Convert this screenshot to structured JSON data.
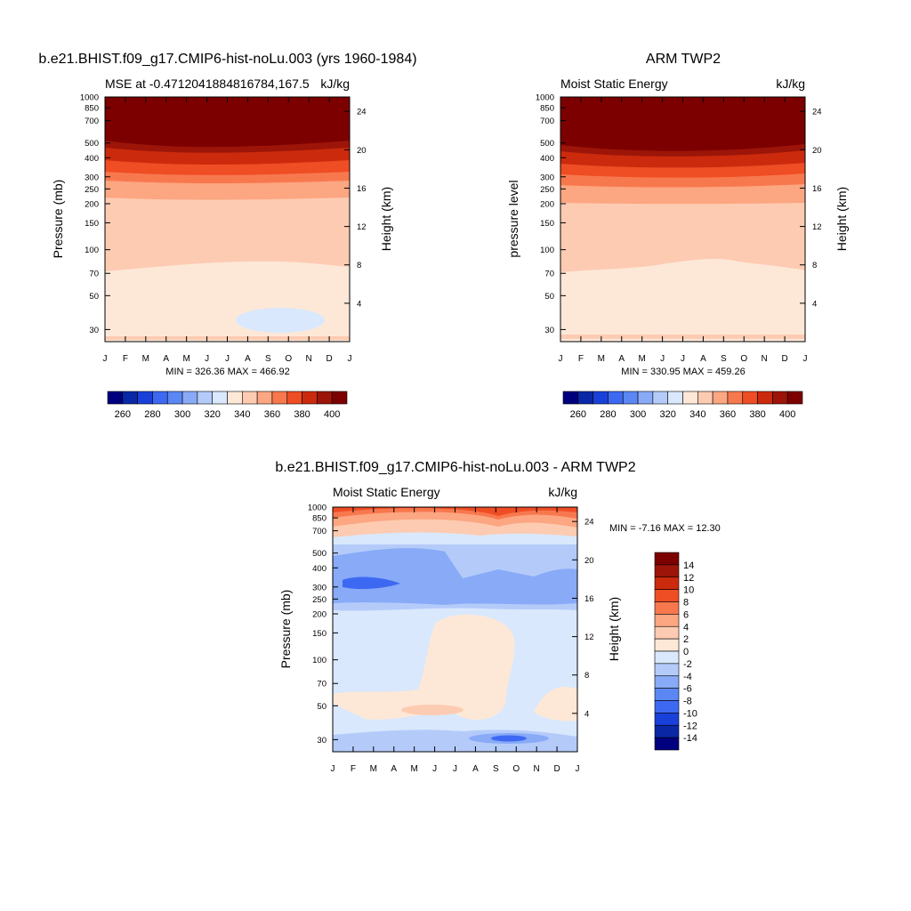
{
  "chart_data": [
    {
      "type": "heatmap",
      "title": "b.e21.BHIST.f09_g17.CMIP6-hist-noLu.003 (yrs 1960-1984)",
      "left_label": "MSE at -0.4712041884816784,167.5",
      "right_label": "kJ/kg",
      "ylabel": "Pressure (mb)",
      "y2label": "Height (km)",
      "x_ticks": [
        "J",
        "F",
        "M",
        "A",
        "M",
        "J",
        "J",
        "A",
        "S",
        "O",
        "N",
        "D",
        "J"
      ],
      "y_ticks": [
        "30",
        "50",
        "70",
        "100",
        "150",
        "200",
        "250",
        "300",
        "400",
        "500",
        "700",
        "850",
        "1000"
      ],
      "y_values": [
        30,
        50,
        70,
        100,
        150,
        200,
        250,
        300,
        400,
        500,
        700,
        850,
        1000
      ],
      "y2_ticks": [
        "24",
        "20",
        "16",
        "12",
        "8",
        "4"
      ],
      "y2_values": [
        24,
        20,
        16,
        12,
        8,
        4
      ],
      "min_max_text": "MIN = 326.36 MAX = 466.92",
      "min": 326.36,
      "max": 466.92,
      "contour_levels": [
        260,
        270,
        280,
        290,
        300,
        310,
        320,
        330,
        340,
        350,
        360,
        370,
        380,
        390,
        400
      ],
      "colorbar_labels": [
        "260",
        "280",
        "300",
        "320",
        "340",
        "360",
        "380",
        "400"
      ],
      "colorbar_values": [
        260,
        280,
        300,
        320,
        340,
        360,
        380,
        400
      ]
    },
    {
      "type": "heatmap",
      "title": "ARM TWP2",
      "left_label": "Moist Static Energy",
      "right_label": "kJ/kg",
      "ylabel": "pressure level",
      "y2label": "Height (km)",
      "x_ticks": [
        "J",
        "F",
        "M",
        "A",
        "M",
        "J",
        "J",
        "A",
        "S",
        "O",
        "N",
        "D",
        "J"
      ],
      "y_ticks": [
        "30",
        "50",
        "70",
        "100",
        "150",
        "200",
        "250",
        "300",
        "400",
        "500",
        "700",
        "850",
        "1000"
      ],
      "y_values": [
        30,
        50,
        70,
        100,
        150,
        200,
        250,
        300,
        400,
        500,
        700,
        850,
        1000
      ],
      "y2_ticks": [
        "24",
        "20",
        "16",
        "12",
        "8",
        "4"
      ],
      "y2_values": [
        24,
        20,
        16,
        12,
        8,
        4
      ],
      "min_max_text": "MIN = 330.95 MAX = 459.26",
      "min": 330.95,
      "max": 459.26,
      "contour_levels": [
        260,
        270,
        280,
        290,
        300,
        310,
        320,
        330,
        340,
        350,
        360,
        370,
        380,
        390,
        400
      ],
      "colorbar_labels": [
        "260",
        "280",
        "300",
        "320",
        "340",
        "360",
        "380",
        "400"
      ],
      "colorbar_values": [
        260,
        280,
        300,
        320,
        340,
        360,
        380,
        400
      ]
    },
    {
      "type": "heatmap",
      "title": "b.e21.BHIST.f09_g17.CMIP6-hist-noLu.003 - ARM TWP2",
      "left_label": "Moist Static Energy",
      "right_label": "kJ/kg",
      "ylabel": "Pressure (mb)",
      "y2label": "Height (km)",
      "x_ticks": [
        "J",
        "F",
        "M",
        "A",
        "M",
        "J",
        "J",
        "A",
        "S",
        "O",
        "N",
        "D",
        "J"
      ],
      "y_ticks": [
        "30",
        "50",
        "70",
        "100",
        "150",
        "200",
        "250",
        "300",
        "400",
        "500",
        "700",
        "850",
        "1000"
      ],
      "y_values": [
        30,
        50,
        70,
        100,
        150,
        200,
        250,
        300,
        400,
        500,
        700,
        850,
        1000
      ],
      "y2_ticks": [
        "24",
        "20",
        "16",
        "12",
        "8",
        "4"
      ],
      "y2_values": [
        24,
        20,
        16,
        12,
        8,
        4
      ],
      "min_max_text": "MIN =  -7.16 MAX =  12.30",
      "min": -7.16,
      "max": 12.3,
      "contour_levels": [
        -14,
        -12,
        -10,
        -8,
        -6,
        -4,
        -2,
        0,
        2,
        4,
        6,
        8,
        10,
        12,
        14
      ],
      "colorbar_labels": [
        "14",
        "12",
        "10",
        "8",
        "6",
        "4",
        "2",
        "0",
        "-2",
        "-4",
        "-6",
        "-8",
        "-10",
        "-12",
        "-14"
      ],
      "colorbar_values": [
        14,
        12,
        10,
        8,
        6,
        4,
        2,
        0,
        -2,
        -4,
        -6,
        -8,
        -10,
        -12,
        -14
      ]
    }
  ],
  "colors": {
    "palette": [
      "#00007f",
      "#0a28a6",
      "#1941d9",
      "#3d69f2",
      "#5a87f4",
      "#88aaf7",
      "#b4cbfa",
      "#d9e8fc",
      "#fde8d8",
      "#fdcbb2",
      "#fca682",
      "#f8784e",
      "#ef4d24",
      "#cc2a0d",
      "#9c1508",
      "#7d0000"
    ]
  }
}
